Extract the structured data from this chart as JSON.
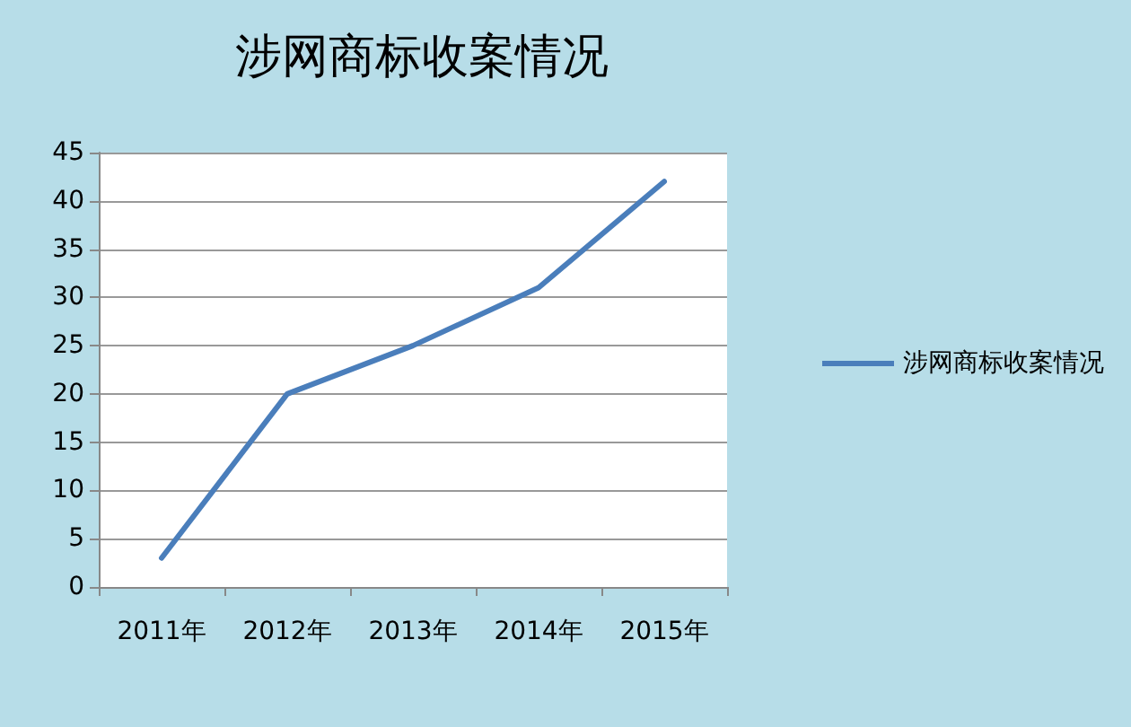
{
  "chart_data": {
    "type": "line",
    "title": "涉网商标收案情况",
    "categories": [
      "2011年",
      "2012年",
      "2013年",
      "2014年",
      "2015年"
    ],
    "series": [
      {
        "name": "涉网商标收案情况",
        "color": "#4a7ebb",
        "values": [
          3,
          20,
          25,
          31,
          42
        ]
      }
    ],
    "ylim": [
      0,
      45
    ],
    "yticks": [
      0,
      5,
      10,
      15,
      20,
      25,
      30,
      35,
      40,
      45
    ],
    "grid": "y",
    "legend": "right",
    "marker": "none",
    "line_style": "solid"
  }
}
